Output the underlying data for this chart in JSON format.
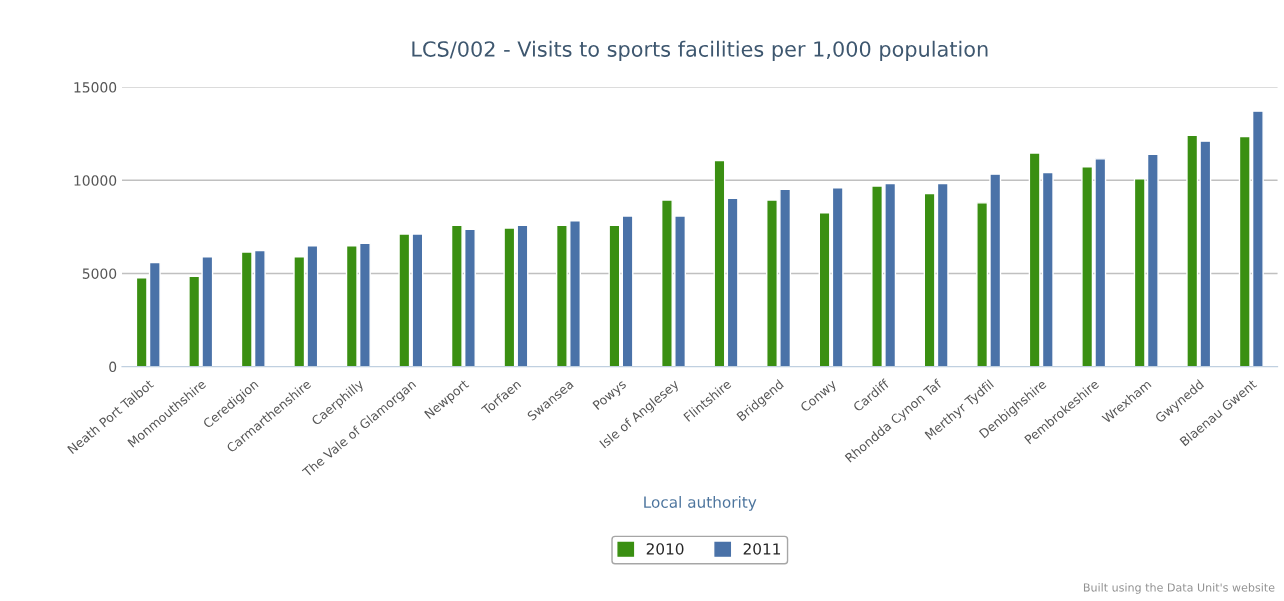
{
  "chart_data": {
    "type": "bar",
    "title": "LCS/002 - Visits to sports facilities per 1,000 population",
    "xlabel": "Local authority",
    "categories": [
      "Neath Port Talbot",
      "Monmouthshire",
      "Ceredigion",
      "Carmarthenshire",
      "Caerphilly",
      "The Vale of Glamorgan",
      "Newport",
      "Torfaen",
      "Swansea",
      "Powys",
      "Isle of Anglesey",
      "Flintshire",
      "Bridgend",
      "Conwy",
      "Cardiff",
      "Rhondda Cynon Taf",
      "Merthyr Tydfil",
      "Denbighshire",
      "Pembrokeshire",
      "Wrexham",
      "Gwynedd",
      "Blaenau Gwent"
    ],
    "series": [
      {
        "name": "2010",
        "color": "#3a8f12",
        "values": [
          4770,
          4850,
          6150,
          5900,
          6480,
          7120,
          7580,
          7440,
          7580,
          7580,
          8940,
          11060,
          8940,
          8250,
          9690,
          9290,
          8790,
          11460,
          10730,
          10080,
          12420,
          12350
        ]
      },
      {
        "name": "2011",
        "color": "#4a72a8",
        "values": [
          5580,
          5900,
          6230,
          6480,
          6620,
          7120,
          7370,
          7580,
          7830,
          8080,
          8080,
          9040,
          9520,
          9600,
          9830,
          9830,
          10330,
          10420,
          11150,
          11390,
          12100,
          13710
        ]
      }
    ],
    "ylim": [
      0,
      15000
    ],
    "yticks": [
      0,
      5000,
      10000,
      15000
    ],
    "grid": "y",
    "legend": "bottom",
    "annotations": [
      "Built using the Data Unit's website"
    ]
  }
}
